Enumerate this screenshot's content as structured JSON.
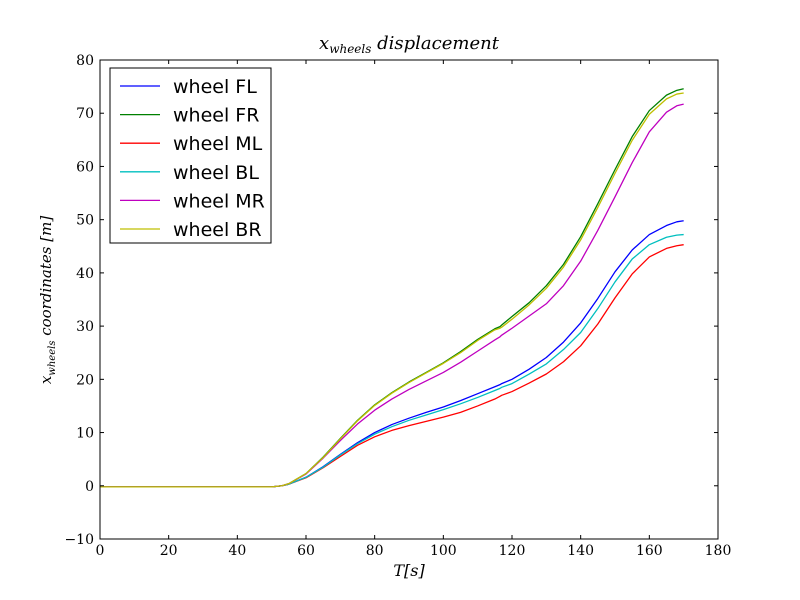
{
  "chart_data": {
    "type": "line",
    "title": {
      "base": "x",
      "sub": "wheels",
      "rest": " displacement"
    },
    "xlabel": {
      "base": "T",
      "rest": "[s]"
    },
    "ylabel": {
      "base": "x",
      "sub": "wheels",
      "rest": " coordinates [m]"
    },
    "xlim": [
      0,
      180
    ],
    "ylim": [
      -10,
      80
    ],
    "xticks": [
      0,
      20,
      40,
      60,
      80,
      100,
      120,
      140,
      160,
      180
    ],
    "yticks": [
      -10,
      0,
      10,
      20,
      30,
      40,
      50,
      60,
      70,
      80
    ],
    "xtick_labels": [
      "0",
      "20",
      "40",
      "60",
      "80",
      "100",
      "120",
      "140",
      "160",
      "180"
    ],
    "ytick_labels": [
      "−10",
      "0",
      "10",
      "20",
      "30",
      "40",
      "50",
      "60",
      "70",
      "80"
    ],
    "grid": false,
    "legend": {
      "placement": "top-left"
    },
    "x": [
      0,
      50,
      53,
      55,
      60,
      65,
      70,
      75,
      80,
      85,
      90,
      95,
      100,
      105,
      110,
      115,
      116.5,
      117,
      120,
      125,
      130,
      135,
      140,
      145,
      150,
      155,
      160,
      165,
      168,
      170
    ],
    "series": [
      {
        "name": "wheel FL",
        "color": "#0000ff",
        "values": [
          -0.2,
          -0.2,
          0,
          0.3,
          1.6,
          3.6,
          5.9,
          8.1,
          10.0,
          11.5,
          12.7,
          13.8,
          14.8,
          16.0,
          17.3,
          18.6,
          19.0,
          19.2,
          20.0,
          21.9,
          24.1,
          27.0,
          30.6,
          35.2,
          40.2,
          44.3,
          47.2,
          48.9,
          49.6,
          49.8
        ]
      },
      {
        "name": "wheel FR",
        "color": "#008000",
        "values": [
          -0.2,
          -0.2,
          0,
          0.4,
          2.3,
          5.4,
          8.9,
          12.3,
          15.2,
          17.5,
          19.5,
          21.3,
          23.1,
          25.2,
          27.5,
          29.5,
          29.9,
          30.2,
          31.8,
          34.4,
          37.6,
          41.6,
          46.8,
          53.0,
          59.4,
          65.6,
          70.5,
          73.4,
          74.3,
          74.6
        ]
      },
      {
        "name": "wheel ML",
        "color": "#ff0000",
        "values": [
          -0.2,
          -0.2,
          0,
          0.3,
          1.5,
          3.4,
          5.5,
          7.6,
          9.2,
          10.4,
          11.3,
          12.1,
          12.9,
          13.8,
          15.0,
          16.3,
          16.8,
          17.0,
          17.7,
          19.3,
          21.0,
          23.3,
          26.3,
          30.4,
          35.3,
          39.8,
          43.0,
          44.6,
          45.1,
          45.3
        ]
      },
      {
        "name": "wheel BL",
        "color": "#00bfbf",
        "values": [
          -0.2,
          -0.2,
          0,
          0.3,
          1.6,
          3.5,
          5.8,
          7.9,
          9.7,
          11.1,
          12.3,
          13.3,
          14.3,
          15.4,
          16.6,
          17.9,
          18.3,
          18.5,
          19.2,
          21.0,
          22.9,
          25.6,
          28.8,
          33.3,
          38.3,
          42.6,
          45.3,
          46.7,
          47.1,
          47.2
        ]
      },
      {
        "name": "wheel MR",
        "color": "#bf00bf",
        "values": [
          -0.2,
          -0.2,
          0,
          0.4,
          2.2,
          5.2,
          8.5,
          11.6,
          14.2,
          16.3,
          18.1,
          19.7,
          21.3,
          23.2,
          25.3,
          27.4,
          28.0,
          28.3,
          29.6,
          31.9,
          34.2,
          37.6,
          42.2,
          48.0,
          54.3,
          60.7,
          66.5,
          70.2,
          71.4,
          71.7
        ]
      },
      {
        "name": "wheel BR",
        "color": "#bfbf00",
        "values": [
          -0.2,
          -0.2,
          0,
          0.4,
          2.3,
          5.3,
          8.8,
          12.2,
          15.1,
          17.4,
          19.4,
          21.2,
          23.0,
          25.0,
          27.3,
          29.3,
          29.6,
          29.8,
          31.3,
          34.0,
          37.1,
          41.1,
          46.2,
          52.3,
          58.7,
          64.9,
          69.8,
          72.7,
          73.6,
          73.8
        ]
      }
    ]
  }
}
